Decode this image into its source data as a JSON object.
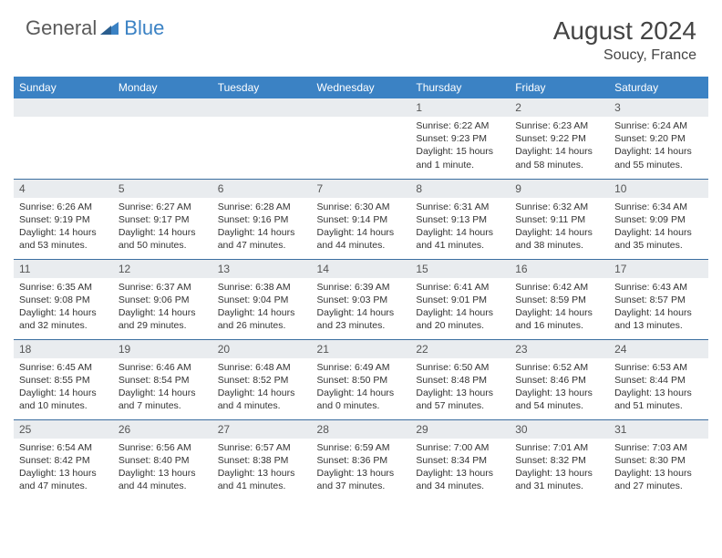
{
  "logo": {
    "text1": "General",
    "text2": "Blue"
  },
  "title": "August 2024",
  "location": "Soucy, France",
  "colors": {
    "header_bg": "#3b82c4",
    "header_text": "#ffffff",
    "daynum_bg": "#e9ecef",
    "row_border": "#3b6ea0",
    "body_text": "#333333",
    "logo_gray": "#5a5a5a",
    "logo_blue": "#3b82c4"
  },
  "weekdays": [
    "Sunday",
    "Monday",
    "Tuesday",
    "Wednesday",
    "Thursday",
    "Friday",
    "Saturday"
  ],
  "first_weekday_index": 4,
  "days": [
    {
      "n": 1,
      "sunrise": "6:22 AM",
      "sunset": "9:23 PM",
      "daylight": "15 hours and 1 minute."
    },
    {
      "n": 2,
      "sunrise": "6:23 AM",
      "sunset": "9:22 PM",
      "daylight": "14 hours and 58 minutes."
    },
    {
      "n": 3,
      "sunrise": "6:24 AM",
      "sunset": "9:20 PM",
      "daylight": "14 hours and 55 minutes."
    },
    {
      "n": 4,
      "sunrise": "6:26 AM",
      "sunset": "9:19 PM",
      "daylight": "14 hours and 53 minutes."
    },
    {
      "n": 5,
      "sunrise": "6:27 AM",
      "sunset": "9:17 PM",
      "daylight": "14 hours and 50 minutes."
    },
    {
      "n": 6,
      "sunrise": "6:28 AM",
      "sunset": "9:16 PM",
      "daylight": "14 hours and 47 minutes."
    },
    {
      "n": 7,
      "sunrise": "6:30 AM",
      "sunset": "9:14 PM",
      "daylight": "14 hours and 44 minutes."
    },
    {
      "n": 8,
      "sunrise": "6:31 AM",
      "sunset": "9:13 PM",
      "daylight": "14 hours and 41 minutes."
    },
    {
      "n": 9,
      "sunrise": "6:32 AM",
      "sunset": "9:11 PM",
      "daylight": "14 hours and 38 minutes."
    },
    {
      "n": 10,
      "sunrise": "6:34 AM",
      "sunset": "9:09 PM",
      "daylight": "14 hours and 35 minutes."
    },
    {
      "n": 11,
      "sunrise": "6:35 AM",
      "sunset": "9:08 PM",
      "daylight": "14 hours and 32 minutes."
    },
    {
      "n": 12,
      "sunrise": "6:37 AM",
      "sunset": "9:06 PM",
      "daylight": "14 hours and 29 minutes."
    },
    {
      "n": 13,
      "sunrise": "6:38 AM",
      "sunset": "9:04 PM",
      "daylight": "14 hours and 26 minutes."
    },
    {
      "n": 14,
      "sunrise": "6:39 AM",
      "sunset": "9:03 PM",
      "daylight": "14 hours and 23 minutes."
    },
    {
      "n": 15,
      "sunrise": "6:41 AM",
      "sunset": "9:01 PM",
      "daylight": "14 hours and 20 minutes."
    },
    {
      "n": 16,
      "sunrise": "6:42 AM",
      "sunset": "8:59 PM",
      "daylight": "14 hours and 16 minutes."
    },
    {
      "n": 17,
      "sunrise": "6:43 AM",
      "sunset": "8:57 PM",
      "daylight": "14 hours and 13 minutes."
    },
    {
      "n": 18,
      "sunrise": "6:45 AM",
      "sunset": "8:55 PM",
      "daylight": "14 hours and 10 minutes."
    },
    {
      "n": 19,
      "sunrise": "6:46 AM",
      "sunset": "8:54 PM",
      "daylight": "14 hours and 7 minutes."
    },
    {
      "n": 20,
      "sunrise": "6:48 AM",
      "sunset": "8:52 PM",
      "daylight": "14 hours and 4 minutes."
    },
    {
      "n": 21,
      "sunrise": "6:49 AM",
      "sunset": "8:50 PM",
      "daylight": "14 hours and 0 minutes."
    },
    {
      "n": 22,
      "sunrise": "6:50 AM",
      "sunset": "8:48 PM",
      "daylight": "13 hours and 57 minutes."
    },
    {
      "n": 23,
      "sunrise": "6:52 AM",
      "sunset": "8:46 PM",
      "daylight": "13 hours and 54 minutes."
    },
    {
      "n": 24,
      "sunrise": "6:53 AM",
      "sunset": "8:44 PM",
      "daylight": "13 hours and 51 minutes."
    },
    {
      "n": 25,
      "sunrise": "6:54 AM",
      "sunset": "8:42 PM",
      "daylight": "13 hours and 47 minutes."
    },
    {
      "n": 26,
      "sunrise": "6:56 AM",
      "sunset": "8:40 PM",
      "daylight": "13 hours and 44 minutes."
    },
    {
      "n": 27,
      "sunrise": "6:57 AM",
      "sunset": "8:38 PM",
      "daylight": "13 hours and 41 minutes."
    },
    {
      "n": 28,
      "sunrise": "6:59 AM",
      "sunset": "8:36 PM",
      "daylight": "13 hours and 37 minutes."
    },
    {
      "n": 29,
      "sunrise": "7:00 AM",
      "sunset": "8:34 PM",
      "daylight": "13 hours and 34 minutes."
    },
    {
      "n": 30,
      "sunrise": "7:01 AM",
      "sunset": "8:32 PM",
      "daylight": "13 hours and 31 minutes."
    },
    {
      "n": 31,
      "sunrise": "7:03 AM",
      "sunset": "8:30 PM",
      "daylight": "13 hours and 27 minutes."
    }
  ],
  "labels": {
    "sunrise": "Sunrise:",
    "sunset": "Sunset:",
    "daylight": "Daylight:"
  }
}
